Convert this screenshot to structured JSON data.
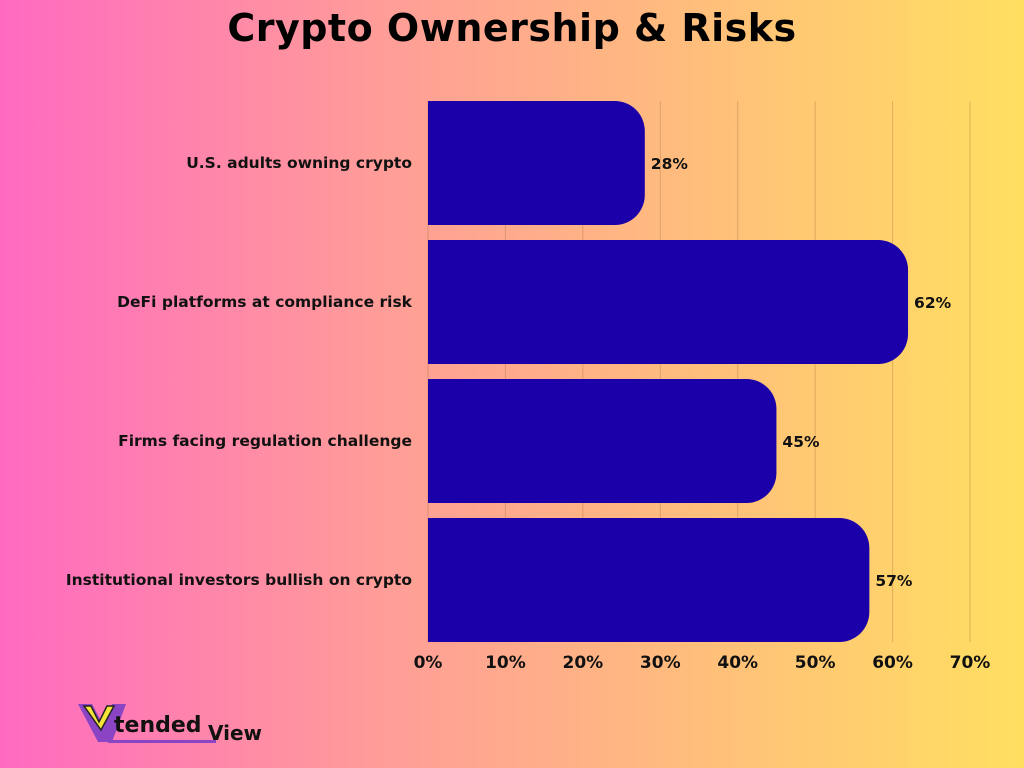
{
  "chart_data": {
    "type": "bar",
    "orientation": "horizontal",
    "title": "Crypto Ownership & Risks",
    "categories": [
      "U.S. adults owning crypto",
      "DeFi platforms at compliance risk",
      "Firms facing regulation challenge",
      "Institutional investors bullish on crypto"
    ],
    "values": [
      28,
      62,
      45,
      57
    ],
    "value_labels": [
      "28%",
      "62%",
      "45%",
      "57%"
    ],
    "xlim": [
      0,
      70
    ],
    "xticks": [
      "0%",
      "10%",
      "20%",
      "30%",
      "40%",
      "50%",
      "60%",
      "70%"
    ],
    "xlabel": "",
    "ylabel": "",
    "grid": "vertical",
    "bar_color": "#1b00aa"
  },
  "logo": {
    "text": "XtendedView",
    "colors": {
      "purple": "#8b45c4",
      "yellow": "#f5e53a"
    }
  }
}
